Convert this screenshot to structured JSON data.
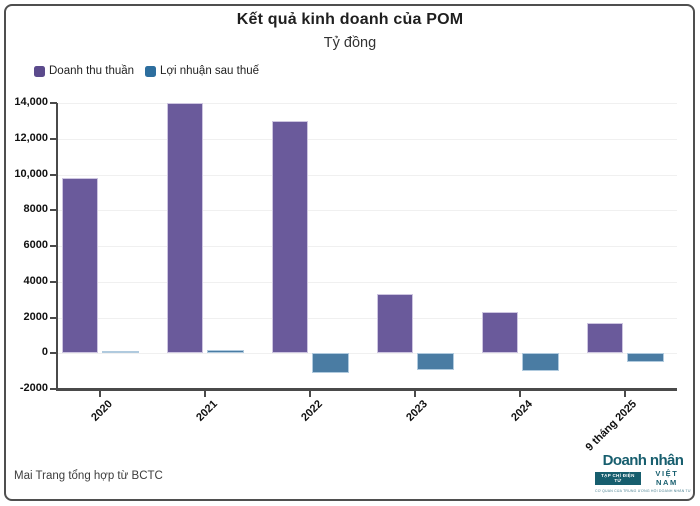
{
  "header": {
    "title": "Kết quả kinh doanh của POM",
    "subtitle": "Tỷ đồng"
  },
  "footer": {
    "source": "Mai Trang tổng hợp từ BCTC"
  },
  "logo": {
    "name": "Doanh nhân",
    "badge": "TẠP CHÍ ĐIỆN TỬ",
    "country": "VIỆT NAM",
    "tagline": "CƠ QUAN CỦA TRUNG ƯƠNG HỘI DOANH NHÂN TƯ NHÂN VIỆT NAM",
    "color": "#175e6e"
  },
  "chart_data": {
    "type": "bar",
    "title": "Kết quả kinh doanh của POM",
    "subtitle": "Tỷ đồng",
    "unit": "tỷ đồng",
    "categories": [
      "2020",
      "2021",
      "2022",
      "2023",
      "2024",
      "9 tháng 2025"
    ],
    "series": [
      {
        "name": "Doanh thu thuần",
        "values": [
          9800,
          14000,
          13000,
          3300,
          2300,
          1700
        ],
        "color": "#6a5a9b",
        "border_color": "#cdc5e0",
        "legend_color": "#5b4a8c"
      },
      {
        "name": "Lợi nhuận sau thuế",
        "values": [
          16,
          200,
          -1080,
          -960,
          -1000,
          -500
        ],
        "color": "#4a7ca3",
        "border_color": "#b0cade",
        "legend_color": "#2d6e9e"
      }
    ],
    "ylim": [
      -2000,
      14000
    ],
    "y_ticks": [
      {
        "value": 14000,
        "label": "14,000"
      },
      {
        "value": 12000,
        "label": "12,000"
      },
      {
        "value": 10000,
        "label": "10,000"
      },
      {
        "value": 8000,
        "label": "8000"
      },
      {
        "value": 6000,
        "label": "6000"
      },
      {
        "value": 4000,
        "label": "4000"
      },
      {
        "value": 2000,
        "label": "2000"
      },
      {
        "value": 0,
        "label": "0"
      },
      {
        "value": -2000,
        "label": "-2000"
      }
    ],
    "grid": true,
    "legend_position": "top-left",
    "axis_color": "#4a4a4a",
    "grid_color": "#f0f0f0"
  }
}
